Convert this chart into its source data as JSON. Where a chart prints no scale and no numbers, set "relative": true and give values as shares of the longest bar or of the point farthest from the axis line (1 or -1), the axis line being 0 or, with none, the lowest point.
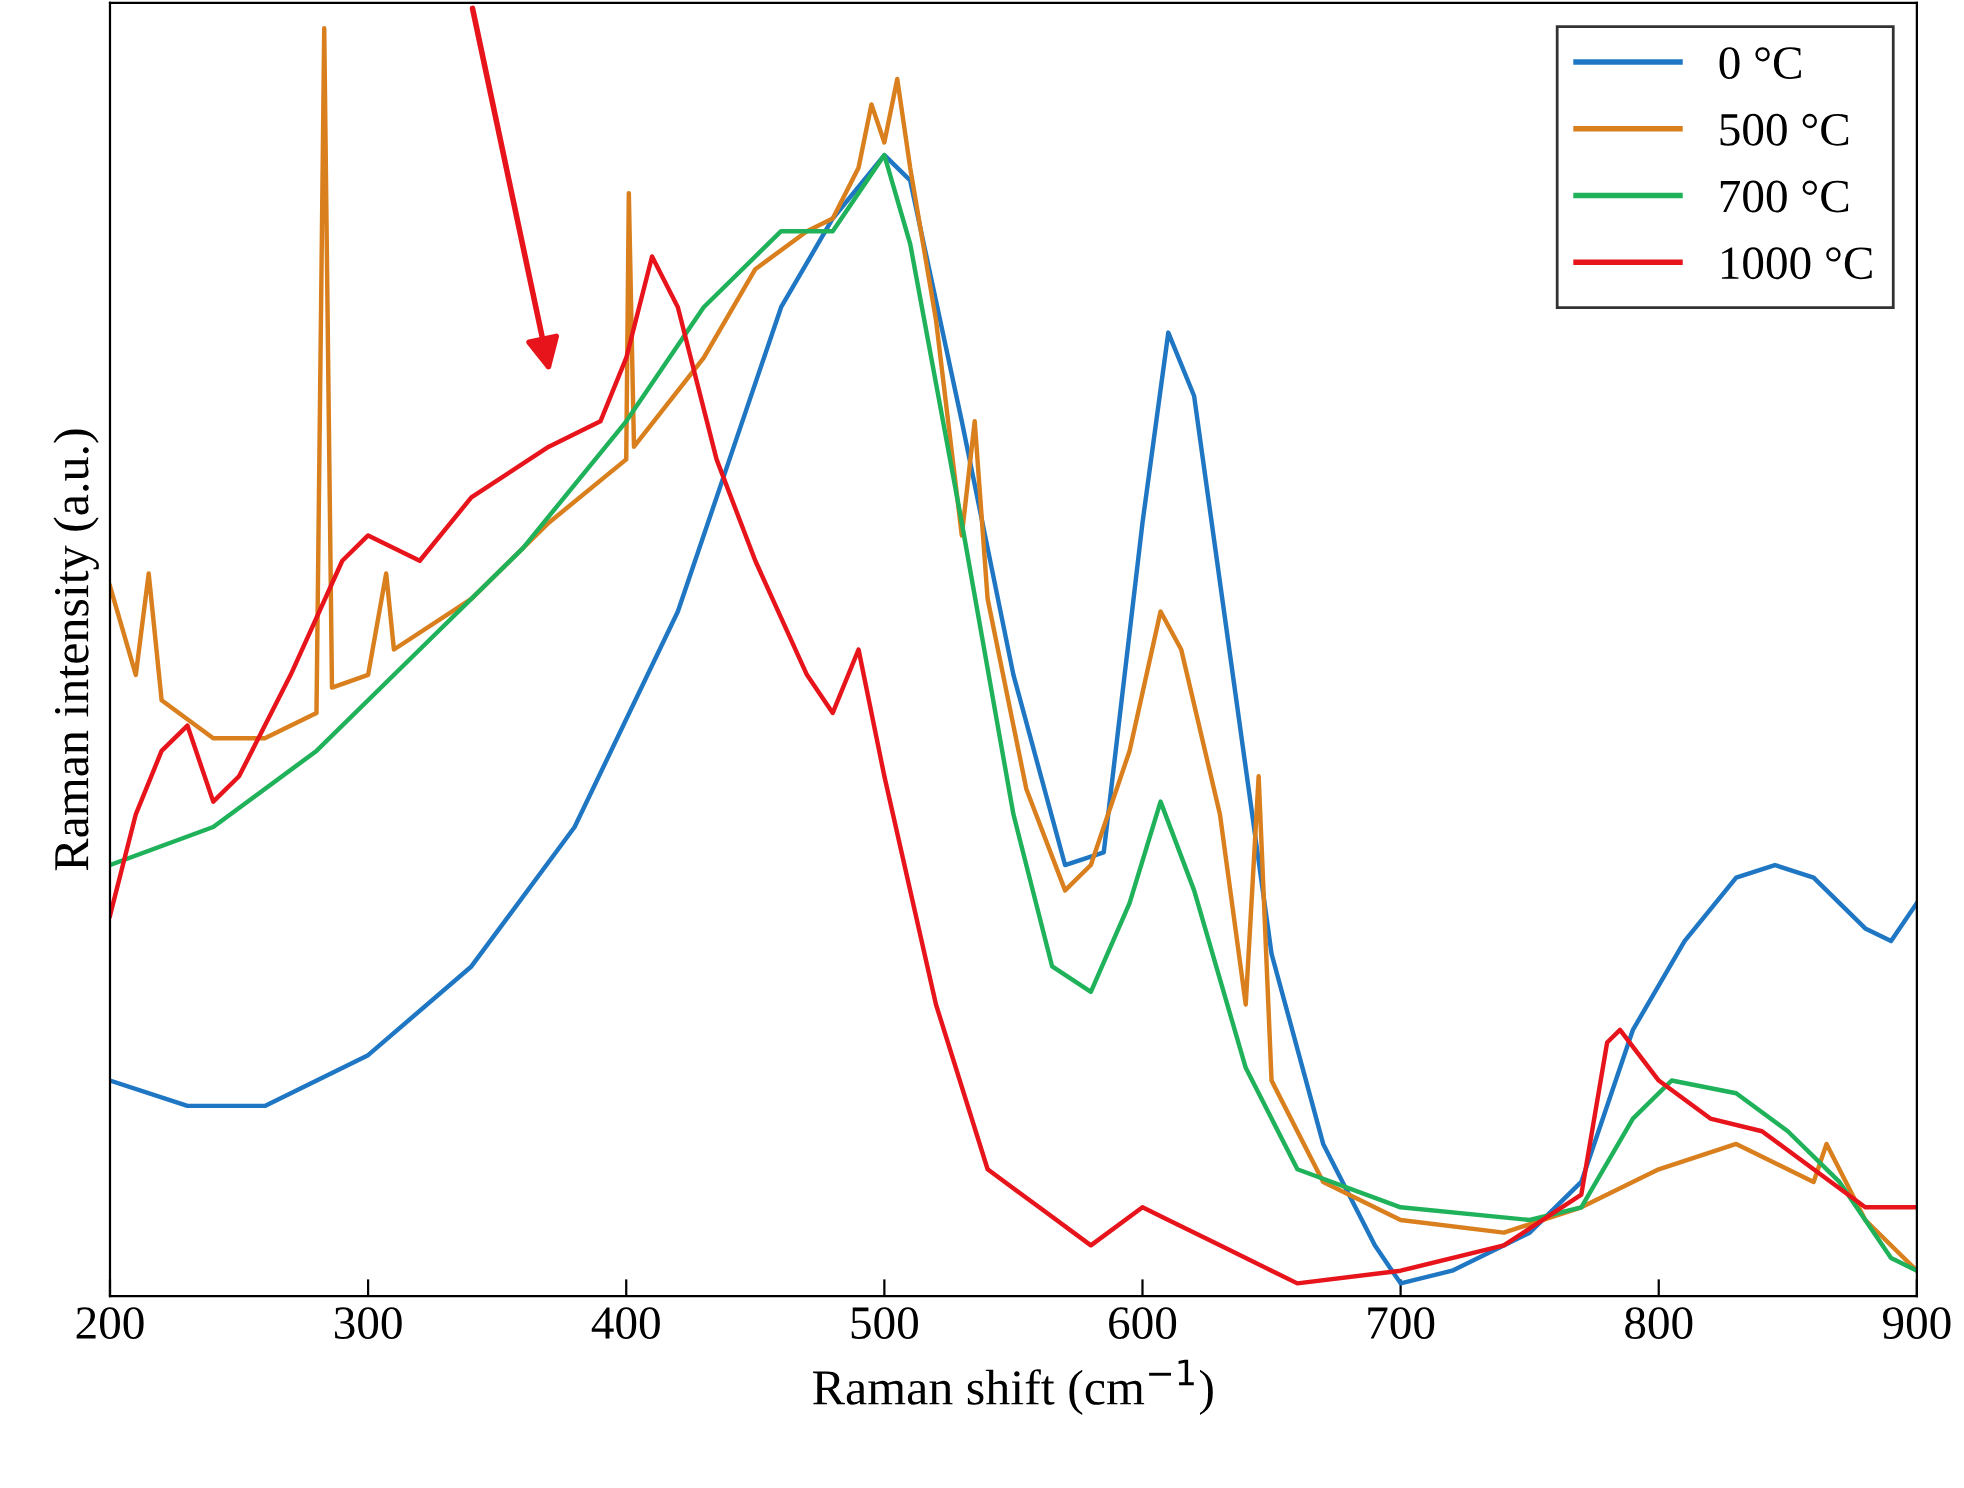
{
  "chart_data": {
    "type": "line",
    "xlabel": "Raman shift (cm$^{−1}$)",
    "ylabel": "Raman intensity (a.u.)",
    "relative": true,
    "xlim": [
      200,
      900
    ],
    "xticks": [
      200,
      300,
      400,
      500,
      600,
      700,
      800,
      900
    ],
    "tick_labels": "x",
    "grid": false,
    "legend": "top right",
    "marker": "none",
    "line_style": "solid",
    "series": [
      {
        "name": "0 °C",
        "color": "#1f77c4",
        "x": [
          200,
          230,
          260,
          300,
          340,
          380,
          420,
          440,
          460,
          480,
          500,
          510,
          530,
          550,
          570,
          585,
          600,
          610,
          620,
          635,
          650,
          670,
          690,
          700,
          720,
          750,
          770,
          790,
          810,
          830,
          845,
          860,
          880,
          890,
          900
        ],
        "values": [
          0.17,
          0.15,
          0.15,
          0.19,
          0.26,
          0.37,
          0.54,
          0.66,
          0.78,
          0.85,
          0.9,
          0.88,
          0.69,
          0.49,
          0.34,
          0.35,
          0.61,
          0.76,
          0.71,
          0.49,
          0.27,
          0.12,
          0.04,
          0.01,
          0.02,
          0.05,
          0.09,
          0.21,
          0.28,
          0.33,
          0.34,
          0.33,
          0.29,
          0.28,
          0.31
        ]
      },
      {
        "name": "500 °C",
        "color": "#d97f1e",
        "x": [
          200,
          210,
          215,
          220,
          240,
          260,
          280,
          283,
          286,
          300,
          307,
          310,
          340,
          370,
          400,
          401,
          403,
          430,
          450,
          470,
          480,
          490,
          495,
          500,
          505,
          510,
          520,
          530,
          535,
          540,
          555,
          570,
          580,
          595,
          607,
          615,
          630,
          640,
          645,
          650,
          670,
          700,
          740,
          770,
          800,
          830,
          860,
          865,
          880,
          900
        ],
        "values": [
          0.56,
          0.49,
          0.57,
          0.47,
          0.44,
          0.44,
          0.46,
          1.0,
          0.48,
          0.49,
          0.57,
          0.51,
          0.55,
          0.61,
          0.66,
          0.87,
          0.67,
          0.74,
          0.81,
          0.84,
          0.85,
          0.89,
          0.94,
          0.91,
          0.96,
          0.89,
          0.77,
          0.6,
          0.69,
          0.55,
          0.4,
          0.32,
          0.34,
          0.43,
          0.54,
          0.51,
          0.38,
          0.23,
          0.41,
          0.17,
          0.09,
          0.06,
          0.05,
          0.07,
          0.1,
          0.12,
          0.09,
          0.12,
          0.06,
          0.02
        ]
      },
      {
        "name": "700 °C",
        "color": "#1fb25a",
        "x": [
          200,
          240,
          280,
          320,
          360,
          400,
          430,
          460,
          480,
          500,
          510,
          530,
          550,
          565,
          580,
          595,
          607,
          620,
          640,
          660,
          700,
          750,
          770,
          790,
          805,
          830,
          850,
          870,
          890,
          900
        ],
        "values": [
          0.34,
          0.37,
          0.43,
          0.51,
          0.59,
          0.69,
          0.78,
          0.84,
          0.84,
          0.9,
          0.83,
          0.61,
          0.38,
          0.26,
          0.24,
          0.31,
          0.39,
          0.32,
          0.18,
          0.1,
          0.07,
          0.06,
          0.07,
          0.14,
          0.17,
          0.16,
          0.13,
          0.09,
          0.03,
          0.02
        ]
      },
      {
        "name": "1000 °C",
        "color": "#e8141c",
        "x": [
          200,
          210,
          220,
          230,
          240,
          250,
          270,
          290,
          300,
          320,
          340,
          370,
          390,
          400,
          410,
          420,
          435,
          450,
          470,
          480,
          490,
          500,
          520,
          540,
          560,
          580,
          600,
          610,
          630,
          660,
          700,
          740,
          770,
          780,
          785,
          800,
          820,
          840,
          860,
          880,
          900
        ],
        "values": [
          0.3,
          0.38,
          0.43,
          0.45,
          0.39,
          0.41,
          0.49,
          0.58,
          0.6,
          0.58,
          0.63,
          0.67,
          0.69,
          0.74,
          0.82,
          0.78,
          0.66,
          0.58,
          0.49,
          0.46,
          0.51,
          0.41,
          0.23,
          0.1,
          0.07,
          0.04,
          0.07,
          0.06,
          0.04,
          0.01,
          0.02,
          0.04,
          0.08,
          0.2,
          0.21,
          0.17,
          0.14,
          0.13,
          0.1,
          0.07,
          0.07
        ]
      }
    ]
  }
}
